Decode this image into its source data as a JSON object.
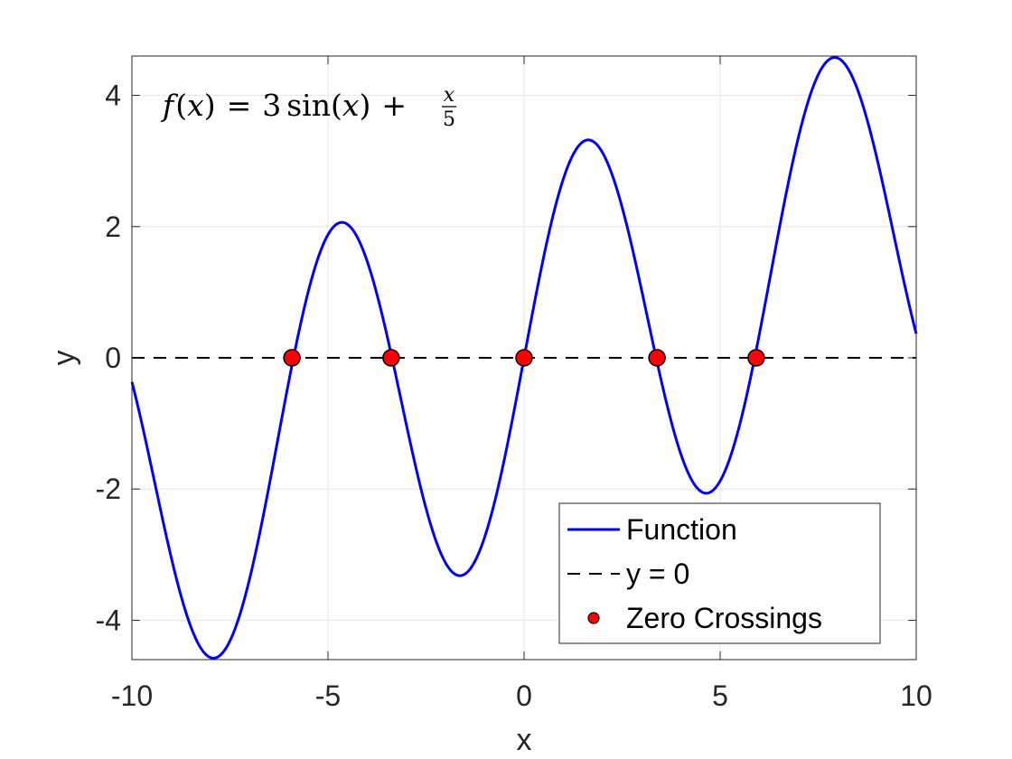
{
  "chart_data": {
    "type": "line",
    "title": "",
    "xlabel": "x",
    "ylabel": "y",
    "xlim": [
      -10,
      10
    ],
    "ylim": [
      -4.6,
      4.6
    ],
    "xticks": [
      -10,
      -5,
      0,
      5,
      10
    ],
    "yticks": [
      -4,
      -2,
      0,
      2,
      4
    ],
    "xtick_labels": [
      "-10",
      "-5",
      "0",
      "5",
      "10"
    ],
    "ytick_labels": [
      "-4",
      "-2",
      "0",
      "2",
      "4"
    ],
    "grid": true,
    "box": true,
    "legend_position": "bottom-right",
    "annotation": {
      "f": "f",
      "x": "x",
      "eq": "=",
      "coef": "3",
      "sin": "sin",
      "plus": "+",
      "num": "x",
      "den": "5"
    },
    "series": [
      {
        "name": "Function",
        "kind": "line",
        "expression": "3*sin(x) + x/5",
        "x_range": [
          -10,
          10
        ],
        "color": "#0000ff",
        "style": "solid"
      },
      {
        "name": "y = 0",
        "kind": "line",
        "x": [
          -10,
          10
        ],
        "y": [
          0,
          0
        ],
        "color": "#000000",
        "style": "dashed"
      },
      {
        "name": "Zero Crossings",
        "kind": "scatter",
        "x": [
          -5.92,
          -3.39,
          0,
          3.39,
          5.92
        ],
        "y": [
          0,
          0,
          0,
          0,
          0
        ],
        "color": "#ff0000",
        "edge_color": "#000000"
      }
    ]
  }
}
